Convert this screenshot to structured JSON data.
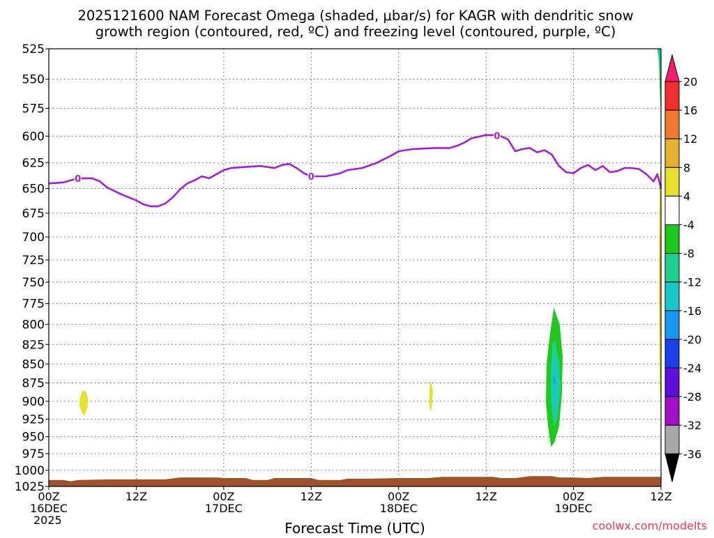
{
  "title": {
    "line1": "2025121600 NAM Forecast Omega (shaded, μbar/s) for KAGR with dendritic snow",
    "line2": "growth region (contoured, red, ºC) and freezing level (contoured, purple, ºC)"
  },
  "watermark": "coolwx.com/modelts",
  "chart_data": {
    "type": "time-height",
    "title": "2025121600 NAM Forecast Omega (shaded, μbar/s) for KAGR with dendritic snow growth region (contoured, red, ºC) and freezing level (contoured, purple, ºC)",
    "xlabel": "Forecast Time (UTC)",
    "ylabel": "",
    "x_unit": "hours since 00Z 16DEC 2025",
    "x_range": [
      0,
      84
    ],
    "y_range": [
      525,
      1025
    ],
    "y_scale": "log-pressure",
    "grid": true,
    "y_ticks": [
      525,
      550,
      575,
      600,
      625,
      650,
      675,
      700,
      725,
      750,
      775,
      800,
      825,
      850,
      875,
      900,
      925,
      950,
      975,
      1000,
      1025
    ],
    "x_ticks": [
      {
        "x": 0,
        "label": "00Z",
        "date": "16DEC",
        "year": "2025"
      },
      {
        "x": 12,
        "label": "12Z",
        "date": "",
        "year": ""
      },
      {
        "x": 24,
        "label": "00Z",
        "date": "17DEC",
        "year": ""
      },
      {
        "x": 36,
        "label": "12Z",
        "date": "",
        "year": ""
      },
      {
        "x": 48,
        "label": "00Z",
        "date": "18DEC",
        "year": ""
      },
      {
        "x": 60,
        "label": "12Z",
        "date": "",
        "year": ""
      },
      {
        "x": 72,
        "label": "00Z",
        "date": "19DEC",
        "year": ""
      },
      {
        "x": 84,
        "label": "12Z",
        "date": "",
        "year": ""
      }
    ],
    "colorbar": {
      "levels": [
        20,
        16,
        12,
        8,
        4,
        -4,
        -8,
        -12,
        -16,
        -20,
        -24,
        -28,
        -32,
        -36
      ],
      "colors": [
        "#f81c6e",
        "#f03030",
        "#f07a30",
        "#e8b030",
        "#e8e030",
        "#ffffff",
        "#1ec81e",
        "#20d090",
        "#18c8c8",
        "#1898f0",
        "#1a40e8",
        "#6010d8",
        "#a010c8",
        "#a8a8a8",
        "#000000"
      ]
    },
    "freezing_level": {
      "label": "0",
      "label_x": [
        4,
        36,
        61.5
      ],
      "color": "#a020d0",
      "points": [
        [
          0,
          645
        ],
        [
          2,
          644
        ],
        [
          4,
          640
        ],
        [
          6,
          640
        ],
        [
          7,
          643
        ],
        [
          8,
          649
        ],
        [
          10,
          656
        ],
        [
          12,
          662
        ],
        [
          13,
          666
        ],
        [
          14,
          668
        ],
        [
          15,
          668
        ],
        [
          16,
          665
        ],
        [
          17,
          659
        ],
        [
          18,
          651
        ],
        [
          19,
          645
        ],
        [
          20,
          642
        ],
        [
          21,
          638
        ],
        [
          22,
          640
        ],
        [
          23,
          636
        ],
        [
          24,
          632
        ],
        [
          25,
          630
        ],
        [
          27,
          629
        ],
        [
          29,
          628
        ],
        [
          31,
          630
        ],
        [
          32,
          627
        ],
        [
          33,
          626
        ],
        [
          34,
          630
        ],
        [
          35,
          635
        ],
        [
          36,
          638
        ],
        [
          38,
          638
        ],
        [
          40,
          635
        ],
        [
          41,
          632
        ],
        [
          43,
          630
        ],
        [
          45,
          625
        ],
        [
          47,
          618
        ],
        [
          48,
          614
        ],
        [
          50,
          612
        ],
        [
          53,
          611
        ],
        [
          55,
          611
        ],
        [
          56,
          609
        ],
        [
          57,
          606
        ],
        [
          58,
          602
        ],
        [
          60,
          599
        ],
        [
          61,
          599
        ],
        [
          62,
          600
        ],
        [
          63,
          603
        ],
        [
          64,
          614
        ],
        [
          65,
          612
        ],
        [
          66,
          611
        ],
        [
          67,
          615
        ],
        [
          68,
          613
        ],
        [
          69,
          617
        ],
        [
          70,
          628
        ],
        [
          71,
          634
        ],
        [
          72,
          635
        ],
        [
          73,
          630
        ],
        [
          74,
          627
        ],
        [
          75,
          632
        ],
        [
          76,
          628
        ],
        [
          77,
          634
        ],
        [
          78,
          633
        ],
        [
          79,
          630
        ],
        [
          80,
          630
        ],
        [
          81,
          631
        ],
        [
          82,
          636
        ],
        [
          83,
          643
        ],
        [
          83.5,
          636
        ],
        [
          84,
          650
        ]
      ]
    },
    "omega_regions": [
      {
        "value_range": [
          4,
          8
        ],
        "color": "#e8e030",
        "points": [
          [
            4.2,
            898
          ],
          [
            4.6,
            885
          ],
          [
            5.1,
            887
          ],
          [
            5.4,
            896
          ],
          [
            5.3,
            908
          ],
          [
            4.9,
            920
          ],
          [
            4.5,
            915
          ],
          [
            4.2,
            905
          ]
        ]
      },
      {
        "value_range": [
          4,
          8
        ],
        "color": "#e8e030",
        "points": [
          [
            52.2,
            890
          ],
          [
            52.4,
            870
          ],
          [
            52.7,
            885
          ],
          [
            52.6,
            903
          ],
          [
            52.4,
            915
          ],
          [
            52.2,
            905
          ]
        ]
      },
      {
        "value_range": [
          -8,
          -4
        ],
        "color": "#1ec81e",
        "points": [
          [
            69.3,
            780
          ],
          [
            70.1,
            800
          ],
          [
            70.5,
            840
          ],
          [
            70.4,
            890
          ],
          [
            70.0,
            935
          ],
          [
            69.4,
            958
          ],
          [
            68.9,
            965
          ],
          [
            68.5,
            935
          ],
          [
            68.2,
            900
          ],
          [
            68.3,
            850
          ],
          [
            68.8,
            810
          ]
        ]
      },
      {
        "value_range": [
          -12,
          -8
        ],
        "color": "#20d090",
        "points": [
          [
            69.4,
            820
          ],
          [
            70.0,
            845
          ],
          [
            70.2,
            880
          ],
          [
            69.8,
            925
          ],
          [
            69.3,
            935
          ],
          [
            68.9,
            900
          ],
          [
            68.9,
            855
          ],
          [
            69.1,
            825
          ]
        ]
      },
      {
        "value_range": [
          -16,
          -12
        ],
        "color": "#18c8c8",
        "points": [
          [
            69.3,
            835
          ],
          [
            69.8,
            860
          ],
          [
            69.8,
            905
          ],
          [
            69.3,
            920
          ],
          [
            69.0,
            880
          ],
          [
            69.1,
            845
          ]
        ]
      },
      {
        "value_range": [
          -20,
          -16
        ],
        "color": "#1898f0",
        "points": [
          [
            69.35,
            865
          ],
          [
            69.5,
            872
          ],
          [
            69.35,
            880
          ],
          [
            69.25,
            872
          ]
        ]
      },
      {
        "value_range": [
          -8,
          -4
        ],
        "color": "#1ec81e",
        "points": [
          [
            83.5,
            525
          ],
          [
            83.7,
            535
          ],
          [
            83.9,
            570
          ],
          [
            84,
            580
          ],
          [
            84,
            525
          ]
        ]
      },
      {
        "value_range": [
          -12,
          -8
        ],
        "color": "#20d090",
        "points": [
          [
            83.6,
            525
          ],
          [
            83.7,
            535
          ],
          [
            83.85,
            548
          ],
          [
            84,
            552
          ],
          [
            84,
            525
          ]
        ]
      },
      {
        "value_range": [
          -16,
          -12
        ],
        "color": "#18c8c8",
        "points": [
          [
            83.7,
            525
          ],
          [
            83.8,
            534
          ],
          [
            84,
            538
          ],
          [
            84,
            525
          ]
        ]
      },
      {
        "value_range": [
          4,
          8
        ],
        "color": "#e8e030",
        "points": [
          [
            83.8,
            640
          ],
          [
            84,
            630
          ],
          [
            84,
            910
          ],
          [
            83.8,
            880
          ],
          [
            83.7,
            760
          ],
          [
            83.75,
            690
          ]
        ]
      },
      {
        "value_range": [
          8,
          12
        ],
        "color": "#e8b030",
        "points": [
          [
            83.85,
            700
          ],
          [
            84,
            690
          ],
          [
            84,
            820
          ],
          [
            83.9,
            810
          ],
          [
            83.85,
            760
          ]
        ]
      },
      {
        "value_range": [
          12,
          16
        ],
        "color": "#f07a30",
        "points": [
          [
            83.9,
            730
          ],
          [
            84,
            725
          ],
          [
            84,
            780
          ],
          [
            83.93,
            770
          ]
        ]
      }
    ],
    "terrain": {
      "color": "#a0522d",
      "points": [
        [
          0,
          1015
        ],
        [
          2,
          1015
        ],
        [
          3,
          1017
        ],
        [
          4,
          1015
        ],
        [
          8,
          1014
        ],
        [
          12,
          1014
        ],
        [
          16,
          1014
        ],
        [
          18,
          1011
        ],
        [
          23,
          1011
        ],
        [
          24,
          1012
        ],
        [
          27,
          1012
        ],
        [
          28,
          1015
        ],
        [
          30,
          1015
        ],
        [
          31,
          1012
        ],
        [
          36,
          1012
        ],
        [
          37,
          1015
        ],
        [
          40,
          1015
        ],
        [
          41,
          1013
        ],
        [
          44,
          1013
        ],
        [
          48,
          1012
        ],
        [
          52,
          1012
        ],
        [
          54,
          1010
        ],
        [
          61,
          1010
        ],
        [
          62,
          1012
        ],
        [
          64,
          1012
        ],
        [
          66,
          1009
        ],
        [
          69,
          1009
        ],
        [
          70,
          1011
        ],
        [
          72,
          1011
        ],
        [
          74,
          1012
        ],
        [
          76,
          1010
        ],
        [
          80,
          1010
        ],
        [
          84,
          1010
        ]
      ]
    }
  }
}
